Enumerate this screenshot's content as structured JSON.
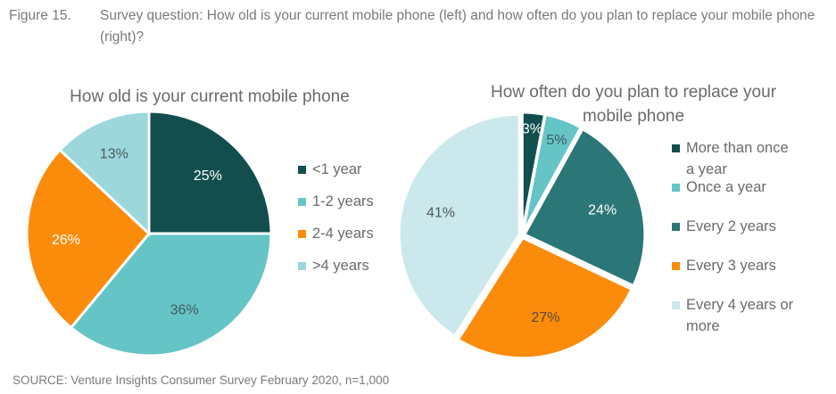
{
  "figure": {
    "number": "Figure 15.",
    "caption": "Survey question:  How old is your current mobile phone (left) and how often do you plan to replace your mobile phone (right)?"
  },
  "source": "SOURCE: Venture Insights Consumer Survey February 2020, n=1,000",
  "colors": {
    "dark_teal": "#134e4f",
    "light_teal": "#65c4c6",
    "orange": "#fb8c0b",
    "pale_teal": "#9bd7db",
    "mid_teal": "#2b7677",
    "very_pale_teal": "#cbe9ec"
  },
  "chart_data": [
    {
      "type": "pie",
      "title": "How old is your current mobile phone",
      "categories": [
        "<1 year",
        "1-2 years",
        "2-4 years",
        ">4 years"
      ],
      "values": [
        25,
        36,
        26,
        13
      ],
      "labels": [
        "25%",
        "36%",
        "26%",
        "13%"
      ],
      "colors": [
        "#134e4f",
        "#65c4c6",
        "#fb8c0b",
        "#9bd7db"
      ],
      "legend_position": "right",
      "start_angle": "12 o'clock, clockwise"
    },
    {
      "type": "pie",
      "title": "How often do you plan to replace your mobile phone",
      "categories": [
        "More than once a year",
        "Once a year",
        "Every 2 years",
        "Every 3 years",
        "Every 4 years or more"
      ],
      "values": [
        3,
        5,
        24,
        27,
        41
      ],
      "labels": [
        "3%",
        "5%",
        "24%",
        "27%",
        "41%"
      ],
      "colors": [
        "#134e4f",
        "#65c4c6",
        "#2b7677",
        "#fb8c0b",
        "#cbe9ec"
      ],
      "legend_position": "right",
      "exploded": true,
      "start_angle": "12 o'clock, clockwise"
    }
  ],
  "left_chart": {
    "title": "How old is your current mobile phone",
    "legend": [
      "<1 year",
      "1-2 years",
      "2-4 years",
      ">4 years"
    ]
  },
  "right_chart": {
    "title_line1": "How often do you plan to replace your",
    "title_line2": "mobile phone",
    "legend": [
      "More than once",
      "a year",
      "Once a year",
      "Every 2 years",
      "Every 3 years",
      "Every 4 years or",
      "more"
    ]
  }
}
